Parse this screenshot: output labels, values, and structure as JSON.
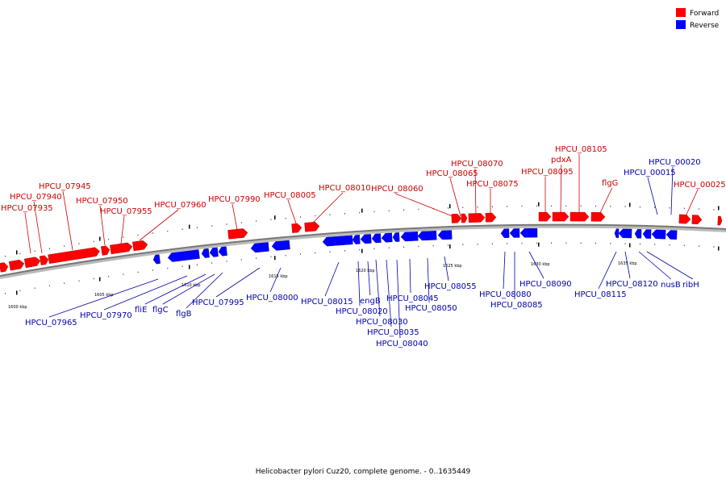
{
  "caption": "Helicobacter pylori Cuz20, complete genome. - 0..1635449",
  "legend": [
    {
      "label": "Forward",
      "color": "#ff0000"
    },
    {
      "label": "Reverse",
      "color": "#0000ff"
    }
  ],
  "ticks": [
    "1600 kbp",
    "1605 kbp",
    "1610 kbp",
    "1615 kbp",
    "1620 kbp",
    "1625 kbp",
    "1630 kbp",
    "1635 kbp"
  ],
  "forward_labels": [
    "HPCU_07935",
    "HPCU_07940",
    "HPCU_07945",
    "HPCU_07950",
    "HPCU_07955",
    "HPCU_07960",
    "HPCU_07990",
    "HPCU_08005",
    "HPCU_08010",
    "HPCU_08060",
    "HPCU_08065",
    "HPCU_08070",
    "HPCU_08075",
    "HPCU_08095",
    "pdxA",
    "HPCU_08105",
    "flgG",
    "HPCU_00025"
  ],
  "reverse_labels": [
    "HPCU_07965",
    "HPCU_07970",
    "fliE",
    "flgC",
    "flgB",
    "HPCU_07995",
    "HPCU_08000",
    "HPCU_08015",
    "HPCU_08020",
    "engB",
    "HPCU_08030",
    "HPCU_08035",
    "HPCU_08040",
    "HPCU_08045",
    "HPCU_08050",
    "HPCU_08055",
    "HPCU_08080",
    "HPCU_08085",
    "HPCU_08090",
    "HPCU_08115",
    "HPCU_08120",
    "nusB",
    "ribH",
    "HPCU_00015",
    "HPCU_00020"
  ]
}
